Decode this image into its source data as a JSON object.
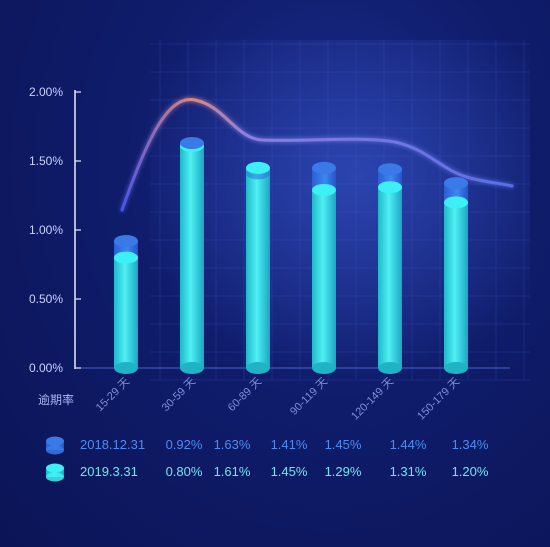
{
  "chart_data": {
    "type": "bar",
    "ylabel": "逾期率",
    "ylim": [
      0,
      2
    ],
    "yticks": [
      "0.00%",
      "0.50%",
      "1.00%",
      "1.50%",
      "2.00%"
    ],
    "categories": [
      "15-29 天",
      "30-59 天",
      "60-89 天",
      "90-119 天",
      "120-149 天",
      "150-179 天"
    ],
    "series": [
      {
        "name": "2018.12.31",
        "values": [
          0.92,
          1.63,
          1.41,
          1.45,
          1.44,
          1.34
        ],
        "labels": [
          "0.92%",
          "1.63%",
          "1.41%",
          "1.45%",
          "1.44%",
          "1.34%"
        ],
        "color": "#2f6fe0"
      },
      {
        "name": "2019.3.31",
        "values": [
          0.8,
          1.61,
          1.45,
          1.29,
          1.31,
          1.2
        ],
        "labels": [
          "0.80%",
          "1.61%",
          "1.45%",
          "1.29%",
          "1.31%",
          "1.20%"
        ],
        "color": "#38e6ee"
      }
    ],
    "grid": true,
    "legend_position": "bottom-left"
  }
}
